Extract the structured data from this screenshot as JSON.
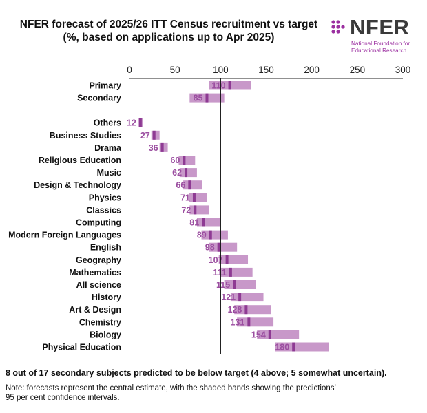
{
  "title_line1": "NFER forecast of 2025/26 ITT Census recruitment vs target",
  "title_line2": "(%, based on applications up to Apr 2025)",
  "logo": {
    "word": "NFER",
    "sub_line1": "National Foundation for",
    "sub_line2": "Educational Research",
    "dot_color": "#9b2fa0"
  },
  "summary": "8 out of 17 secondary subjects predicted to be below target (4 above; 5 somewhat uncertain).",
  "note_line1": "Note: forecasts represent the central estimate, with the shaded bands showing the predictions’",
  "note_line2": "95 per cent confidence intervals.",
  "chart_data": {
    "type": "bar",
    "xlim": [
      0,
      300
    ],
    "xticks": [
      0,
      50,
      100,
      150,
      200,
      250,
      300
    ],
    "reference_line": 100,
    "band_color": "#c898c9",
    "marker_color": "#8e3a93",
    "label_color": "#9b4ea0",
    "groups": [
      [
        {
          "label": "Primary",
          "estimate": 110,
          "low": 87,
          "high": 133
        },
        {
          "label": "Secondary",
          "estimate": 85,
          "low": 66,
          "high": 104
        }
      ],
      [
        {
          "label": "Others",
          "estimate": 12,
          "low": 10,
          "high": 15
        },
        {
          "label": "Business Studies",
          "estimate": 27,
          "low": 24,
          "high": 33
        },
        {
          "label": "Drama",
          "estimate": 36,
          "low": 33,
          "high": 42
        },
        {
          "label": "Religious Education",
          "estimate": 60,
          "low": 54,
          "high": 72
        },
        {
          "label": "Music",
          "estimate": 62,
          "low": 55,
          "high": 74
        },
        {
          "label": "Design & Technology",
          "estimate": 66,
          "low": 59,
          "high": 80
        },
        {
          "label": "Physics",
          "estimate": 71,
          "low": 65,
          "high": 85
        },
        {
          "label": "Classics",
          "estimate": 72,
          "low": 66,
          "high": 87
        },
        {
          "label": "Computing",
          "estimate": 81,
          "low": 74,
          "high": 100
        },
        {
          "label": "Modern Foreign Languages",
          "estimate": 89,
          "low": 79,
          "high": 108
        },
        {
          "label": "English",
          "estimate": 98,
          "low": 87,
          "high": 118
        },
        {
          "label": "Geography",
          "estimate": 107,
          "low": 98,
          "high": 130
        },
        {
          "label": "Mathematics",
          "estimate": 111,
          "low": 100,
          "high": 135
        },
        {
          "label": "All science",
          "estimate": 115,
          "low": 104,
          "high": 139
        },
        {
          "label": "History",
          "estimate": 121,
          "low": 111,
          "high": 147
        },
        {
          "label": "Art & Design",
          "estimate": 128,
          "low": 115,
          "high": 155
        },
        {
          "label": "Chemistry",
          "estimate": 131,
          "low": 118,
          "high": 158
        },
        {
          "label": "Biology",
          "estimate": 154,
          "low": 140,
          "high": 186
        },
        {
          "label": "Physical Education",
          "estimate": 180,
          "low": 160,
          "high": 219
        }
      ]
    ]
  }
}
